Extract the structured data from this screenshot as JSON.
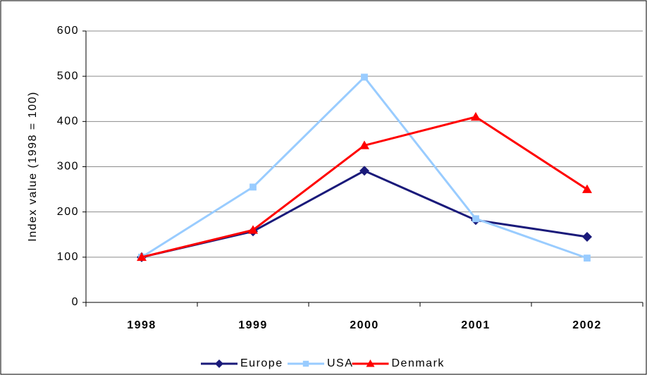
{
  "chart_data": {
    "type": "line",
    "y_label": "Index value (1998 = 100)",
    "categories": [
      "1998",
      "1999",
      "2000",
      "2001",
      "2002"
    ],
    "series": [
      {
        "name": "Europe",
        "color": "#1a1a7a",
        "marker": "diamond",
        "values": [
          100,
          157,
          291,
          182,
          145
        ]
      },
      {
        "name": "USA",
        "color": "#99ccff",
        "marker": "square",
        "values": [
          100,
          255,
          498,
          185,
          98
        ]
      },
      {
        "name": "Denmark",
        "color": "#ff0000",
        "marker": "triangle",
        "values": [
          100,
          160,
          347,
          410,
          250
        ]
      }
    ],
    "ylim": [
      0,
      600
    ],
    "yticks": [
      0,
      100,
      200,
      300,
      400,
      500,
      600
    ],
    "grid": true,
    "legend": "bottom"
  }
}
